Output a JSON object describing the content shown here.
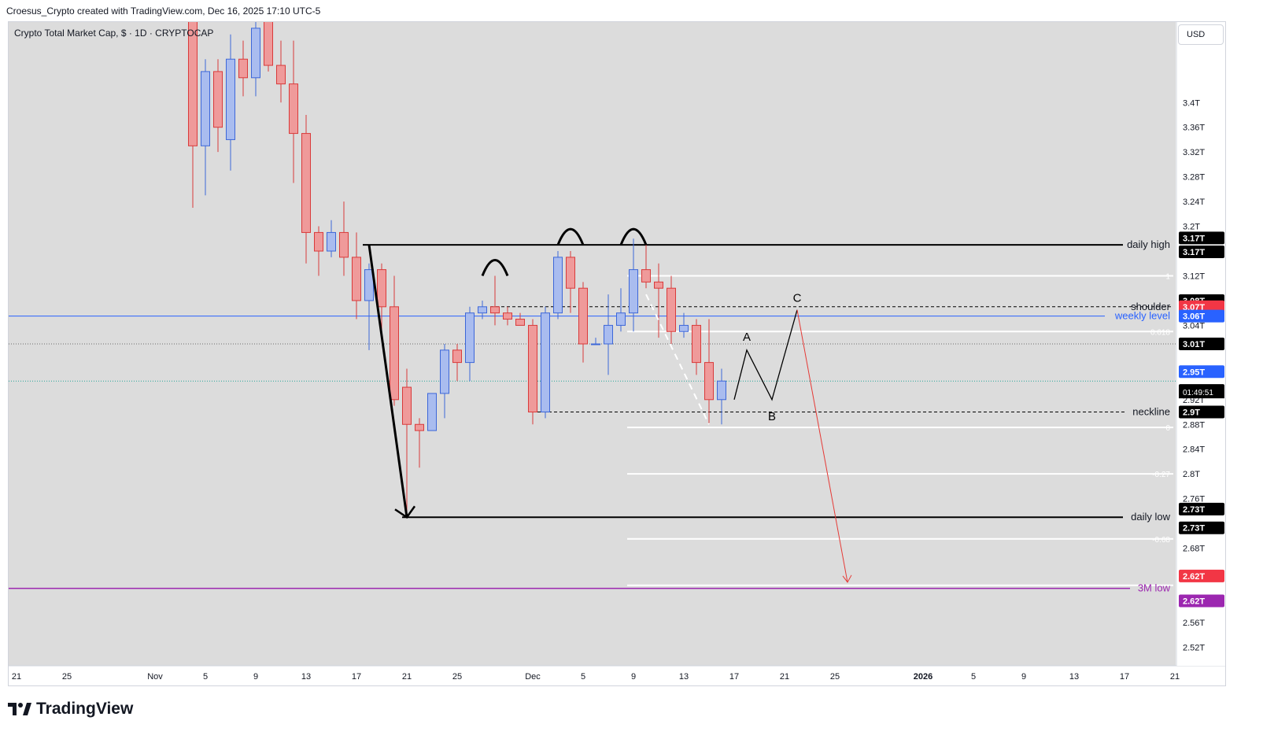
{
  "header": "Croesus_Crypto created with TradingView.com, Dec 16, 2025 17:10 UTC-5",
  "symbol_title": "Crypto Total Market Cap, $ · 1D · CRYPTOCAP",
  "currency": "USD",
  "brand": "TradingView",
  "colors": {
    "up": "#a9bcef",
    "up_border": "#3d67d8",
    "down": "#ef9a9a",
    "down_border": "#d93a3a",
    "background": "#dcdcdc",
    "weekly": "#2962ff",
    "three_m_low": "#9c27b0",
    "projection": "#e53935"
  },
  "chart_data": {
    "type": "candlestick",
    "timeframe": "1D",
    "ylim": [
      2.49,
      3.53
    ],
    "x_range": [
      "2025-10-20",
      "2026-01-21"
    ],
    "price_ticks": [
      "3.4T",
      "3.36T",
      "3.32T",
      "3.28T",
      "3.24T",
      "3.2T",
      "3.16T",
      "3.12T",
      "3.04T",
      "3.01T",
      "2.92T",
      "2.88T",
      "2.84T",
      "2.8T",
      "2.76T",
      "2.68T",
      "2.64T",
      "2.56T",
      "2.52T"
    ],
    "price_tick_values": [
      3.4,
      3.36,
      3.32,
      3.28,
      3.24,
      3.2,
      3.16,
      3.12,
      3.04,
      3.01,
      2.92,
      2.88,
      2.84,
      2.8,
      2.76,
      2.68,
      2.64,
      2.56,
      2.52
    ],
    "time_ticks": [
      "21",
      "25",
      "Nov",
      "5",
      "9",
      "13",
      "17",
      "21",
      "25",
      "Dec",
      "5",
      "9",
      "13",
      "17",
      "21",
      "25",
      "2026",
      "5",
      "9",
      "13",
      "17",
      "21"
    ],
    "time_tick_values": [
      "2025-10-21",
      "2025-10-25",
      "2025-11-01",
      "2025-11-05",
      "2025-11-09",
      "2025-11-13",
      "2025-11-17",
      "2025-11-21",
      "2025-11-25",
      "2025-12-01",
      "2025-12-05",
      "2025-12-09",
      "2025-12-13",
      "2025-12-17",
      "2025-12-21",
      "2025-12-25",
      "2026-01-01",
      "2026-01-05",
      "2026-01-09",
      "2026-01-13",
      "2026-01-17",
      "2026-01-21"
    ],
    "candles": [
      {
        "d": "2025-11-04",
        "o": 3.57,
        "h": 3.58,
        "c": 3.33,
        "l": 3.23
      },
      {
        "d": "2025-11-05",
        "o": 3.33,
        "h": 3.47,
        "c": 3.45,
        "l": 3.25
      },
      {
        "d": "2025-11-06",
        "o": 3.45,
        "h": 3.47,
        "c": 3.36,
        "l": 3.32
      },
      {
        "d": "2025-11-07",
        "o": 3.34,
        "h": 3.51,
        "c": 3.47,
        "l": 3.29
      },
      {
        "d": "2025-11-08",
        "o": 3.47,
        "h": 3.5,
        "c": 3.44,
        "l": 3.41
      },
      {
        "d": "2025-11-09",
        "o": 3.44,
        "h": 3.53,
        "c": 3.52,
        "l": 3.41
      },
      {
        "d": "2025-11-10",
        "o": 3.56,
        "h": 3.62,
        "c": 3.46,
        "l": 3.45
      },
      {
        "d": "2025-11-11",
        "o": 3.46,
        "h": 3.5,
        "c": 3.43,
        "l": 3.4
      },
      {
        "d": "2025-11-12",
        "o": 3.43,
        "h": 3.5,
        "c": 3.35,
        "l": 3.27
      },
      {
        "d": "2025-11-13",
        "o": 3.35,
        "h": 3.38,
        "c": 3.19,
        "l": 3.14
      },
      {
        "d": "2025-11-14",
        "o": 3.19,
        "h": 3.2,
        "c": 3.16,
        "l": 3.12
      },
      {
        "d": "2025-11-15",
        "o": 3.16,
        "h": 3.21,
        "c": 3.19,
        "l": 3.15
      },
      {
        "d": "2025-11-16",
        "o": 3.19,
        "h": 3.24,
        "c": 3.15,
        "l": 3.12
      },
      {
        "d": "2025-11-17",
        "o": 3.15,
        "h": 3.19,
        "c": 3.08,
        "l": 3.05
      },
      {
        "d": "2025-11-18",
        "o": 3.08,
        "h": 3.14,
        "c": 3.13,
        "l": 3.0
      },
      {
        "d": "2025-11-19",
        "o": 3.13,
        "h": 3.14,
        "c": 3.07,
        "l": 3.02
      },
      {
        "d": "2025-11-20",
        "o": 3.07,
        "h": 3.12,
        "c": 2.92,
        "l": 2.91
      },
      {
        "d": "2025-11-21",
        "o": 2.94,
        "h": 2.97,
        "c": 2.88,
        "l": 2.73
      },
      {
        "d": "2025-11-22",
        "o": 2.88,
        "h": 2.89,
        "c": 2.87,
        "l": 2.81
      },
      {
        "d": "2025-11-23",
        "o": 2.87,
        "h": 2.93,
        "c": 2.93,
        "l": 2.87
      },
      {
        "d": "2025-11-24",
        "o": 2.93,
        "h": 3.01,
        "c": 3.0,
        "l": 2.89
      },
      {
        "d": "2025-11-25",
        "o": 3.0,
        "h": 3.01,
        "c": 2.98,
        "l": 2.95
      },
      {
        "d": "2025-11-26",
        "o": 2.98,
        "h": 3.07,
        "c": 3.06,
        "l": 2.95
      },
      {
        "d": "2025-11-27",
        "o": 3.06,
        "h": 3.08,
        "c": 3.07,
        "l": 3.05
      },
      {
        "d": "2025-11-28",
        "o": 3.07,
        "h": 3.12,
        "c": 3.06,
        "l": 3.04
      },
      {
        "d": "2025-11-29",
        "o": 3.06,
        "h": 3.07,
        "c": 3.05,
        "l": 3.04
      },
      {
        "d": "2025-11-30",
        "o": 3.05,
        "h": 3.06,
        "c": 3.04,
        "l": 3.04
      },
      {
        "d": "2025-12-01",
        "o": 3.04,
        "h": 3.05,
        "c": 2.9,
        "l": 2.88
      },
      {
        "d": "2025-12-02",
        "o": 2.9,
        "h": 3.07,
        "c": 3.06,
        "l": 2.89
      },
      {
        "d": "2025-12-03",
        "o": 3.06,
        "h": 3.16,
        "c": 3.15,
        "l": 3.05
      },
      {
        "d": "2025-12-04",
        "o": 3.15,
        "h": 3.16,
        "c": 3.1,
        "l": 3.06
      },
      {
        "d": "2025-12-05",
        "o": 3.1,
        "h": 3.11,
        "c": 3.01,
        "l": 2.98
      },
      {
        "d": "2025-12-06",
        "o": 3.01,
        "h": 3.02,
        "c": 3.01,
        "l": 3.01
      },
      {
        "d": "2025-12-07",
        "o": 3.01,
        "h": 3.09,
        "c": 3.04,
        "l": 2.96
      },
      {
        "d": "2025-12-08",
        "o": 3.04,
        "h": 3.1,
        "c": 3.06,
        "l": 3.03
      },
      {
        "d": "2025-12-09",
        "o": 3.06,
        "h": 3.18,
        "c": 3.13,
        "l": 3.03
      },
      {
        "d": "2025-12-10",
        "o": 3.13,
        "h": 3.17,
        "c": 3.11,
        "l": 3.1
      },
      {
        "d": "2025-12-11",
        "o": 3.11,
        "h": 3.14,
        "c": 3.1,
        "l": 3.02
      },
      {
        "d": "2025-12-12",
        "o": 3.1,
        "h": 3.12,
        "c": 3.03,
        "l": 3.01
      },
      {
        "d": "2025-12-13",
        "o": 3.03,
        "h": 3.06,
        "c": 3.04,
        "l": 3.02
      },
      {
        "d": "2025-12-14",
        "o": 3.04,
        "h": 3.05,
        "c": 2.98,
        "l": 2.96
      },
      {
        "d": "2025-12-15",
        "o": 2.98,
        "h": 3.05,
        "c": 2.92,
        "l": 2.88
      },
      {
        "d": "2025-12-16",
        "o": 2.92,
        "h": 2.97,
        "c": 2.95,
        "l": 2.88
      }
    ],
    "levels": [
      {
        "label": "daily high",
        "price": 3.17
      },
      {
        "label": "shoulder",
        "price": 3.07
      },
      {
        "label": "weekly level",
        "price": 3.055
      },
      {
        "label": "neckline",
        "price": 2.9
      },
      {
        "label": "daily low",
        "price": 2.73
      },
      {
        "label": "3M low",
        "price": 2.615
      }
    ],
    "fib_labels": [
      "1",
      "0.618",
      "0",
      "-0.27",
      "-0.68"
    ],
    "fib_values": [
      3.12,
      3.03,
      2.875,
      2.8,
      2.695
    ],
    "price_badges": [
      "3.17T",
      "3.17T",
      "3.08T",
      "3.07T",
      "3.06T",
      "3.01T",
      "2.95T",
      "2.95T",
      "2.9T",
      "2.73T",
      "2.73T",
      "2.62T",
      "2.62T"
    ],
    "countdown": "01:49:51",
    "wave_labels": [
      "A",
      "B",
      "C"
    ]
  }
}
